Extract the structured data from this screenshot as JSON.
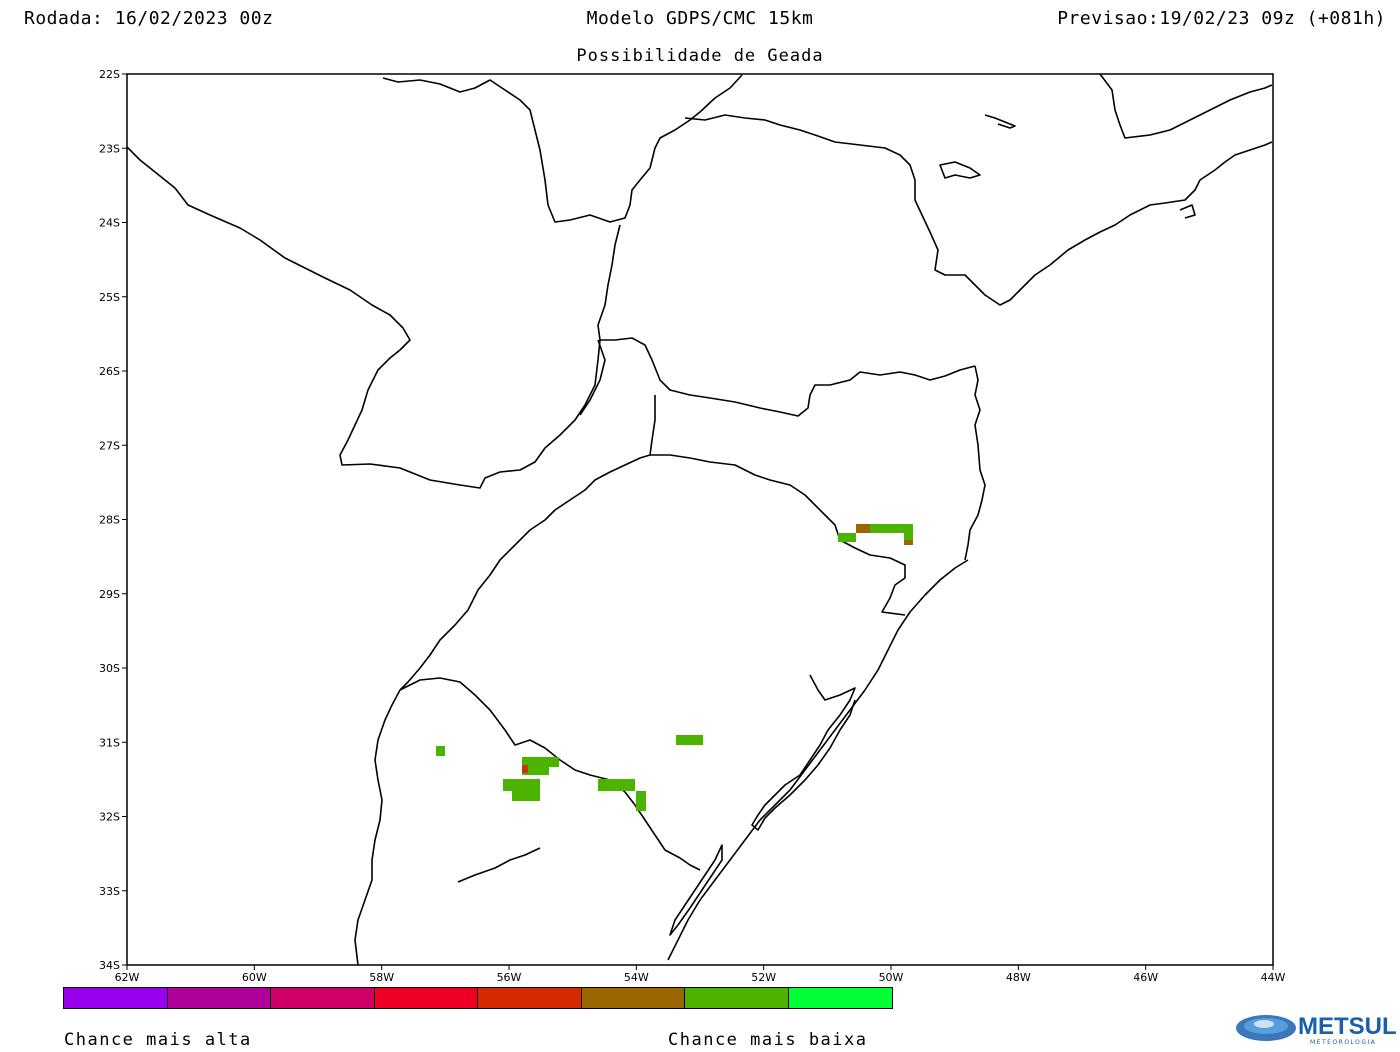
{
  "header": {
    "run": "Rodada: 16/02/2023 00z",
    "model": "Modelo GDPS/CMC 15km",
    "valid": "Previsao:19/02/23 09z (+081h)",
    "subtitle": "Possibilidade de Geada"
  },
  "map": {
    "lat_labels": [
      "22S",
      "23S",
      "24S",
      "25S",
      "26S",
      "27S",
      "28S",
      "29S",
      "30S",
      "31S",
      "32S",
      "33S",
      "34S"
    ],
    "lon_labels": [
      "62W",
      "60W",
      "58W",
      "56W",
      "54W",
      "52W",
      "50W",
      "48W",
      "46W",
      "44W"
    ],
    "border_color": "#000000",
    "frost_colors": {
      "medium": "#996600",
      "low": "#4cb300",
      "high_point": "#cc3300"
    }
  },
  "legend": {
    "colors": [
      "#9900ee",
      "#b0009a",
      "#cc0066",
      "#ee0022",
      "#d62a00",
      "#996600",
      "#4cb300",
      "#00ff33"
    ],
    "high_label": "Chance mais alta",
    "low_label": "Chance mais baixa"
  },
  "logo": {
    "name": "METSUL",
    "tagline": "METEOROLOGIA",
    "color": "#1a5fae"
  }
}
